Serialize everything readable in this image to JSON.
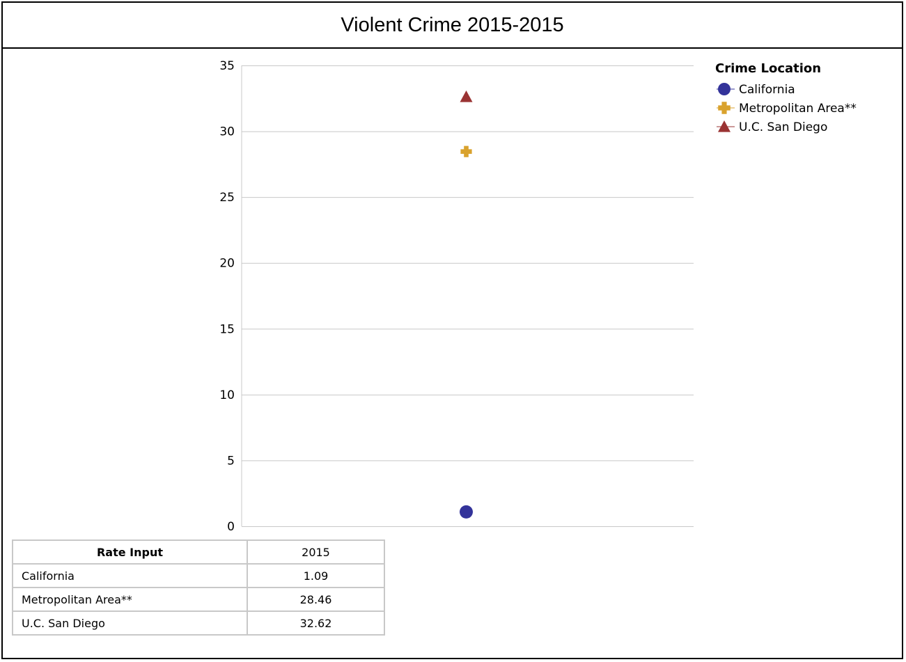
{
  "title": "Violent Crime 2015-2015",
  "chart_data": {
    "type": "scatter",
    "title": "Violent Crime 2015-2015",
    "categories": [
      "2015"
    ],
    "ylim": [
      0,
      35
    ],
    "yticks": [
      0,
      5,
      10,
      15,
      20,
      25,
      30,
      35
    ],
    "grid": true,
    "legend_position": "top-right",
    "legend_title": "Crime Location",
    "series": [
      {
        "name": "California",
        "marker": "circle",
        "color": "#33339a",
        "values": [
          1.09
        ]
      },
      {
        "name": "Metropolitan Area**",
        "marker": "plus",
        "color": "#d9a22d",
        "values": [
          28.46
        ]
      },
      {
        "name": "U.C. San Diego",
        "marker": "triangle",
        "color": "#9a3333",
        "values": [
          32.62
        ]
      }
    ]
  },
  "table": {
    "header": [
      "Rate Input",
      "2015"
    ],
    "rows": [
      [
        "California",
        "1.09"
      ],
      [
        "Metropolitan Area**",
        "28.46"
      ],
      [
        "U.C. San Diego",
        "32.62"
      ]
    ]
  }
}
